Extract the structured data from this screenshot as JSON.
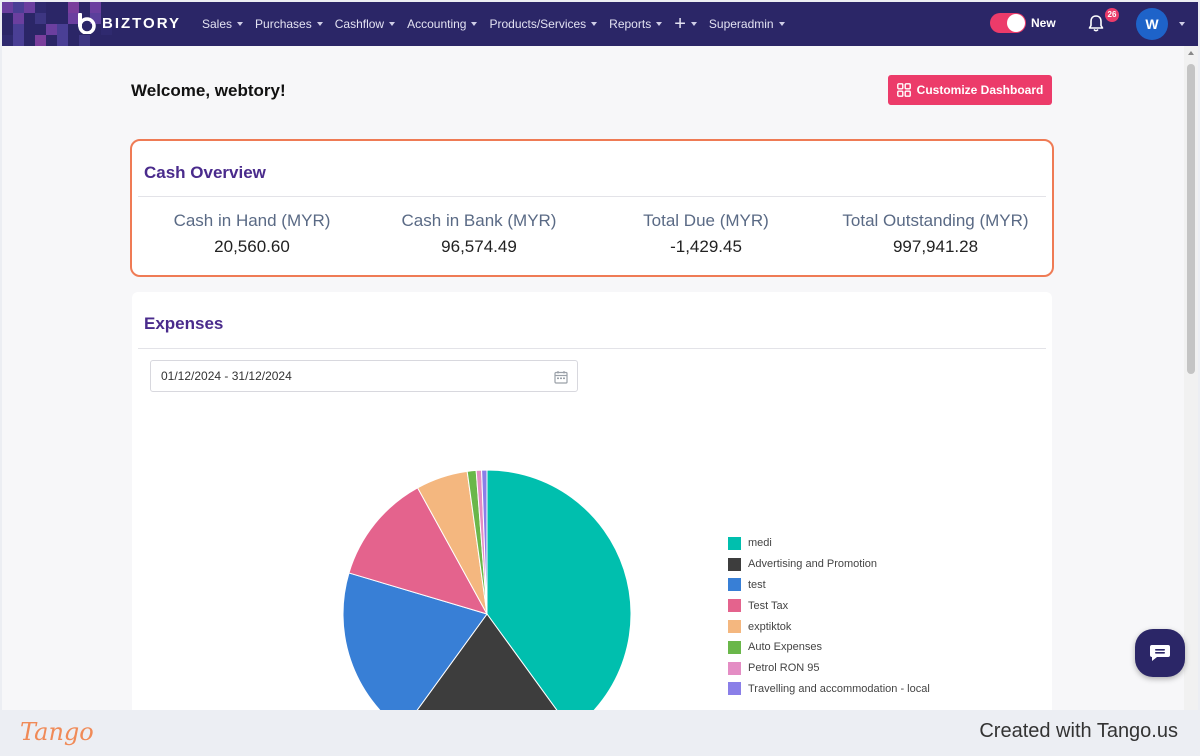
{
  "navbar": {
    "brand": "BIZTORY",
    "menu": [
      {
        "label": "Sales"
      },
      {
        "label": "Purchases"
      },
      {
        "label": "Cashflow"
      },
      {
        "label": "Accounting"
      },
      {
        "label": "Products/Services"
      },
      {
        "label": "Reports"
      }
    ],
    "plus_label": "+",
    "superadmin_label": "Superadmin",
    "toggle_label": "New",
    "notification_count": "26",
    "avatar_initial": "W"
  },
  "header": {
    "welcome": "Welcome, webtory!",
    "customize_label": "Customize Dashboard"
  },
  "cash_overview": {
    "title": "Cash Overview",
    "stats": [
      {
        "label": "Cash in Hand (MYR)",
        "value": "20,560.60"
      },
      {
        "label": "Cash in Bank (MYR)",
        "value": "96,574.49"
      },
      {
        "label": "Total Due (MYR)",
        "value": "-1,429.45"
      },
      {
        "label": "Total Outstanding (MYR)",
        "value": "997,941.28"
      }
    ]
  },
  "expenses": {
    "title": "Expenses",
    "date_range": "01/12/2024 - 31/12/2024"
  },
  "chart_data": {
    "type": "pie",
    "categories": [
      "medi",
      "Advertising and Promotion",
      "test",
      "Test Tax",
      "exptiktok",
      "Auto Expenses",
      "Petrol RON 95",
      "Travelling and accommodation - local"
    ],
    "values": [
      40.0,
      20.0,
      19.6,
      12.4,
      5.8,
      1.0,
      0.6,
      0.6
    ],
    "colors": [
      "#00bfae",
      "#3d3d3d",
      "#387fd6",
      "#e4638d",
      "#f4b77f",
      "#6ab74a",
      "#e48dc4",
      "#8a7fe8"
    ],
    "legend_position": "right"
  },
  "footer": {
    "logo_text": "Tango",
    "credit": "Created with Tango.us"
  }
}
